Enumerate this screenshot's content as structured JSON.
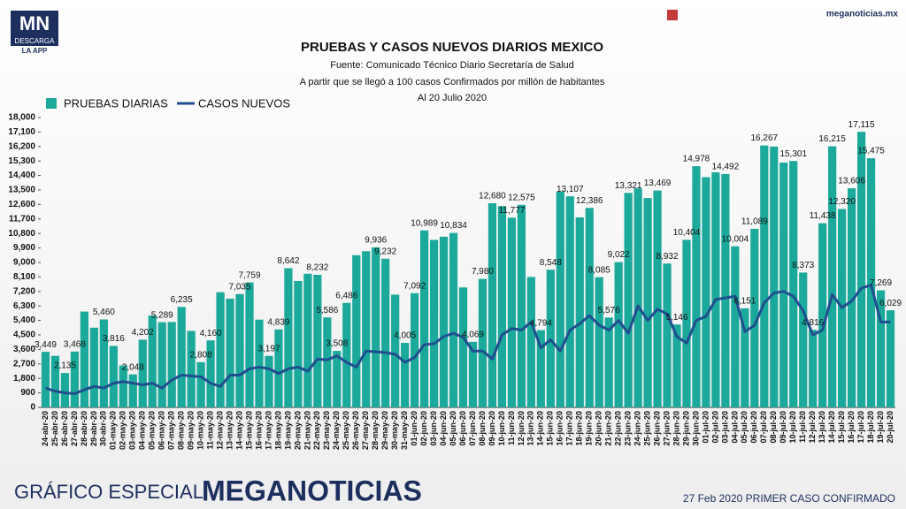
{
  "header": {
    "logo": "MN",
    "logo_sub": "DESCARGA",
    "logo_app": "LA APP",
    "site": "meganoticias.mx"
  },
  "footer": {
    "left": "GRÁFICO ESPECIAL",
    "brand": "MEGANOTICIAS",
    "note": "27 Feb 2020 PRIMER CASO CONFIRMADO"
  },
  "chart_data": {
    "type": "bar",
    "title": "PRUEBAS Y CASOS NUEVOS DIARIOS MEXICO",
    "subtitle": [
      "Fuente: Comunicado Técnico Diario Secretaría de Salud",
      "A partir que se llegó a 100 casos Confirmados por millón de habitantes",
      "Al 20 Julio 2020"
    ],
    "legend": "top-left",
    "grid": false,
    "categories": [
      "24-abr-20",
      "25-abr-20",
      "26-abr-20",
      "27-abr-20",
      "28-abr-20",
      "29-abr-20",
      "30-abr-20",
      "01-may-20",
      "02-may-20",
      "03-may-20",
      "04-may-20",
      "05-may-20",
      "06-may-20",
      "07-may-20",
      "08-may-20",
      "09-may-20",
      "10-may-20",
      "11-may-20",
      "12-may-20",
      "13-may-20",
      "14-may-20",
      "15-may-20",
      "16-may-20",
      "17-may-20",
      "18-may-20",
      "19-may-20",
      "20-may-20",
      "21-may-20",
      "22-may-20",
      "23-may-20",
      "24-may-20",
      "25-may-20",
      "26-may-20",
      "27-may-20",
      "28-may-20",
      "29-may-20",
      "30-may-20",
      "31-may-20",
      "01-jun-20",
      "02-jun-20",
      "03-jun-20",
      "04-jun-20",
      "05-jun-20",
      "06-jun-20",
      "07-jun-20",
      "08-jun-20",
      "09-jun-20",
      "10-jun-20",
      "11-jun-20",
      "12-jun-20",
      "13-jun-20",
      "14-jun-20",
      "15-jun-20",
      "16-jun-20",
      "17-jun-20",
      "18-jun-20",
      "19-jun-20",
      "20-jun-20",
      "21-jun-20",
      "22-jun-20",
      "23-jun-20",
      "24-jun-20",
      "25-jun-20",
      "26-jun-20",
      "27-jun-20",
      "28-jun-20",
      "29-jun-20",
      "30-jun-20",
      "01-jul-20",
      "02-jul-20",
      "03-jul-20",
      "04-jul-20",
      "05-jul-20",
      "06-jul-20",
      "07-jul-20",
      "08-jul-20",
      "09-jul-20",
      "10-jul-20",
      "11-jul-20",
      "12-jul-20",
      "13-jul-20",
      "14-jul-20",
      "15-jul-20",
      "16-jul-20",
      "17-jul-20",
      "18-jul-20",
      "19-jul-20",
      "20-jul-20"
    ],
    "series": [
      {
        "name": "PRUEBAS DIARIAS",
        "type": "bar",
        "color": "#1ba99b",
        "values": [
          3449,
          3200,
          2135,
          3468,
          5950,
          4950,
          5460,
          3816,
          2600,
          2048,
          4202,
          5700,
          5289,
          5300,
          6235,
          4750,
          2808,
          4160,
          7150,
          6750,
          7035,
          7759,
          5450,
          3197,
          4839,
          8642,
          7850,
          8300,
          8232,
          5586,
          3508,
          6486,
          9450,
          9700,
          9936,
          9232,
          7000,
          4005,
          7092,
          10989,
          10400,
          10600,
          10834,
          7450,
          4069,
          7980,
          12680,
          12500,
          11777,
          12575,
          8100,
          4794,
          8548,
          13400,
          13107,
          11800,
          12386,
          8085,
          5576,
          9022,
          13321,
          13600,
          13000,
          13469,
          8932,
          5146,
          10404,
          14978,
          14300,
          14600,
          14492,
          10004,
          6151,
          11089,
          16267,
          16200,
          15200,
          15301,
          8373,
          4816,
          11438,
          16215,
          12320,
          13606,
          17115,
          15475,
          7269,
          6029
        ],
        "value_labels": [
          "3,449",
          null,
          "2,135",
          "3,468",
          null,
          null,
          "5,460",
          "3,816",
          null,
          "2,048",
          "4,202",
          null,
          "5,289",
          null,
          "6,235",
          null,
          "2,808",
          "4,160",
          null,
          null,
          "7,035",
          "7,759",
          null,
          "3,197",
          "4,839",
          "8,642",
          null,
          null,
          "8,232",
          "5,586",
          "3,508",
          "6,486",
          null,
          null,
          "9,936",
          "9,232",
          null,
          "4,005",
          "7,092",
          "10,989",
          null,
          null,
          "10,834",
          null,
          "4,069",
          "7,980",
          "12,680",
          null,
          "11,777",
          "12,575",
          null,
          "4,794",
          "8,548",
          null,
          "13,107",
          null,
          "12,386",
          "8,085",
          "5,576",
          "9,022",
          "13,321",
          null,
          null,
          "13,469",
          "8,932",
          "5,146",
          "10,404",
          "14,978",
          null,
          null,
          "14,492",
          "10,004",
          "6,151",
          "11,089",
          "16,267",
          null,
          null,
          "15,301",
          "8,373",
          "4,816",
          "11,438",
          "16,215",
          "12,320",
          "13,606",
          "17,115",
          "15,475",
          "7,269",
          "6,029"
        ]
      },
      {
        "name": "CASOS NUEVOS",
        "type": "line",
        "color": "#1f4f8f",
        "values": [
          1200,
          1000,
          900,
          850,
          1100,
          1300,
          1200,
          1500,
          1600,
          1500,
          1400,
          1500,
          1200,
          1700,
          2000,
          1950,
          1900,
          1500,
          1300,
          2000,
          2000,
          2400,
          2500,
          2400,
          2100,
          2400,
          2500,
          2250,
          3000,
          2950,
          3200,
          2800,
          2500,
          3500,
          3450,
          3400,
          3300,
          2800,
          3100,
          3900,
          3950,
          4400,
          4600,
          4350,
          3500,
          3500,
          3000,
          4500,
          4900,
          4800,
          5300,
          3700,
          4200,
          3500,
          4800,
          5200,
          5700,
          5100,
          4800,
          5400,
          4600,
          6300,
          5400,
          6100,
          5800,
          4400,
          4000,
          5400,
          5650,
          6700,
          6800,
          6900,
          4700,
          5100,
          6500,
          7100,
          7200,
          6900,
          6000,
          4500,
          4800,
          7000,
          6200,
          6600,
          7400,
          7600,
          5300,
          5300
        ]
      }
    ],
    "ylim": [
      0,
      18000
    ],
    "yticks": [
      0,
      900,
      {
        "value": 1800,
        "label": "1,800"
      },
      {
        "value": 2700,
        "label": "2,700"
      },
      {
        "value": 3600,
        "label": "3,600"
      },
      {
        "value": 4500,
        "label": "4,500"
      },
      {
        "value": 5400,
        "label": "5,400"
      },
      {
        "value": 6300,
        "label": "6,300"
      },
      {
        "value": 7200,
        "label": "7,200"
      },
      {
        "value": 8100,
        "label": "8,100"
      },
      {
        "value": 9000,
        "label": "9,000"
      },
      {
        "value": 9900,
        "label": "9,900"
      },
      {
        "value": 10800,
        "label": "10,800"
      },
      {
        "value": 11700,
        "label": "11,700"
      },
      {
        "value": 12600,
        "label": "12,600"
      },
      {
        "value": 13500,
        "label": "13,500"
      },
      {
        "value": 14400,
        "label": "14,400"
      },
      {
        "value": 15300,
        "label": "15,300"
      },
      {
        "value": 16200,
        "label": "16,200"
      },
      {
        "value": 17100,
        "label": "17,100"
      },
      {
        "value": 18000,
        "label": "18,000"
      }
    ]
  }
}
